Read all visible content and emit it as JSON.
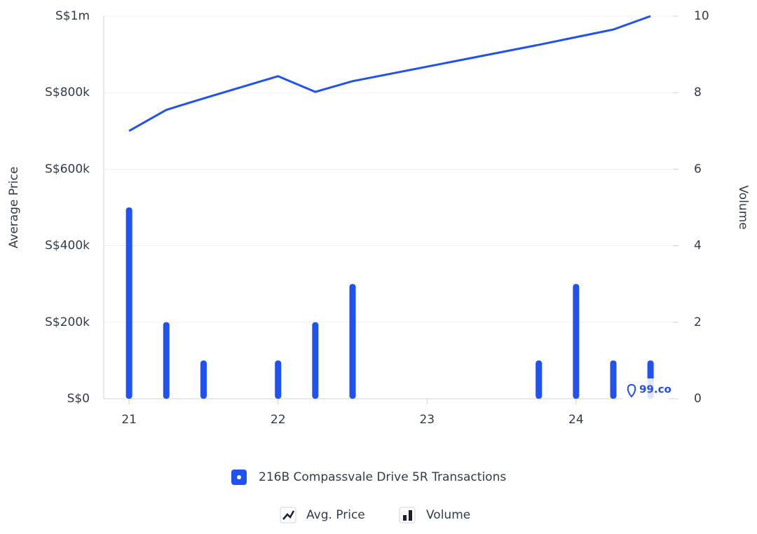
{
  "chart_data": {
    "type": "bar-line",
    "dataset": "216B Compassvale Drive 5R Transactions",
    "y_label": "Average Price",
    "y2_label": "Volume",
    "watermark": "99.co",
    "x": [
      21,
      21.25,
      21.5,
      22,
      22.25,
      22.5,
      23.75,
      24,
      24.25,
      24.5
    ],
    "xlim": [
      20.83,
      24.65
    ],
    "xticks": [
      21,
      22,
      23,
      24
    ],
    "ylim": [
      0,
      1000000
    ],
    "yticks": [
      {
        "value": 0,
        "label": "S$0"
      },
      {
        "value": 200000,
        "label": "S$200k"
      },
      {
        "value": 400000,
        "label": "S$400k"
      },
      {
        "value": 600000,
        "label": "S$600k"
      },
      {
        "value": 800000,
        "label": "S$800k"
      },
      {
        "value": 1000000,
        "label": "S$1m"
      }
    ],
    "y2lim": [
      0,
      10
    ],
    "y2ticks": [
      0,
      2,
      4,
      6,
      8,
      10
    ],
    "grid": true,
    "series": [
      {
        "name": "Avg. Price",
        "type": "line",
        "color": "#2152f0",
        "values": [
          700000,
          755000,
          785000,
          843000,
          802000,
          830000,
          925000,
          945000,
          965000,
          1000000
        ]
      },
      {
        "name": "Volume",
        "type": "bar",
        "axis": "y2",
        "color": "#2152f0",
        "values": [
          5,
          2,
          1,
          1,
          2,
          3,
          1,
          3,
          1,
          1
        ]
      }
    ]
  }
}
